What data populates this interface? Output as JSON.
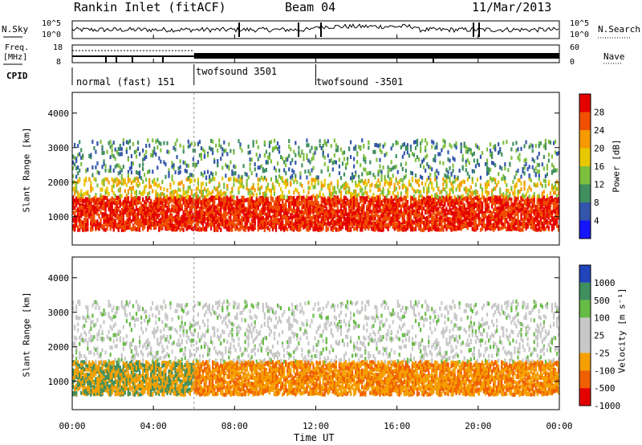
{
  "header": {
    "station": "Rankin Inlet (fitACF)",
    "beam": "Beam 04",
    "date": "11/Mar/2013"
  },
  "panels": {
    "nsky_label": "N.Sky",
    "nsearch_label": "N.Search",
    "nsky_ticks": [
      "10^5",
      "10^0"
    ],
    "nsearch_ticks": [
      "10^5",
      "10^0"
    ],
    "freq_label_1": "Freq.",
    "freq_label_2": "[MHz]",
    "freq_ticks": [
      "18",
      "8"
    ],
    "nave_label": "Nave",
    "nave_ticks": [
      "60",
      "0"
    ],
    "cpid_label": "CPID",
    "cpid_segments": [
      {
        "label": "normal (fast) 151",
        "start_hour": 0,
        "end_hour": 6
      },
      {
        "label": "twofsound 3501",
        "start_hour": 6,
        "end_hour": 12
      },
      {
        "label": "twofsound -3501",
        "start_hour": 12,
        "end_hour": 24
      }
    ]
  },
  "chart_data": [
    {
      "type": "heatmap",
      "name": "power",
      "ylabel": "Slant Range [km]",
      "xlabel": "Time UT",
      "xlim": [
        0,
        24
      ],
      "ylim": [
        180,
        4600
      ],
      "yticks": [
        "1000",
        "2000",
        "3000",
        "4000"
      ],
      "xticks": [
        "00:00",
        "04:00",
        "08:00",
        "12:00",
        "16:00",
        "20:00",
        "00:00"
      ],
      "colorbar": {
        "label": "Power [dB]",
        "ticks": [
          "28",
          "24",
          "20",
          "16",
          "12",
          "8",
          "4"
        ],
        "colors": [
          "#e50000",
          "#f05000",
          "#f59a00",
          "#e8c800",
          "#7fbf3f",
          "#3f8f5f",
          "#3355aa",
          "#1515ff"
        ]
      },
      "bands": [
        {
          "range_km": [
            600,
            1550
          ],
          "dominant": "28"
        },
        {
          "range_km": [
            1550,
            2100
          ],
          "dominant": "20"
        },
        {
          "range_km": [
            2100,
            3200
          ],
          "dominant": "12"
        }
      ]
    },
    {
      "type": "heatmap",
      "name": "velocity",
      "ylabel": "Slant Range [km]",
      "xlabel": "Time UT",
      "xlim": [
        0,
        24
      ],
      "ylim": [
        180,
        4600
      ],
      "yticks": [
        "1000",
        "2000",
        "3000",
        "4000"
      ],
      "xticks": [
        "00:00",
        "04:00",
        "08:00",
        "12:00",
        "16:00",
        "20:00",
        "00:00"
      ],
      "colorbar": {
        "label": "Velocity [m s⁻¹]",
        "ticks": [
          "1000",
          "500",
          "100",
          "25",
          "-25",
          "-100",
          "-500",
          "-1000"
        ],
        "colors": [
          "#2244bb",
          "#3f8f5f",
          "#66bb44",
          "#c8c8c8",
          "#c8c8c8",
          "#f5a000",
          "#f06000",
          "#e50000"
        ]
      },
      "bands": [
        {
          "range_km": [
            600,
            1550
          ],
          "dominant": "-100"
        },
        {
          "range_km": [
            1550,
            2400
          ],
          "dominant": "25"
        },
        {
          "range_km": [
            2400,
            3300
          ],
          "dominant": "25"
        }
      ]
    }
  ],
  "time_axis_label": "Time UT"
}
